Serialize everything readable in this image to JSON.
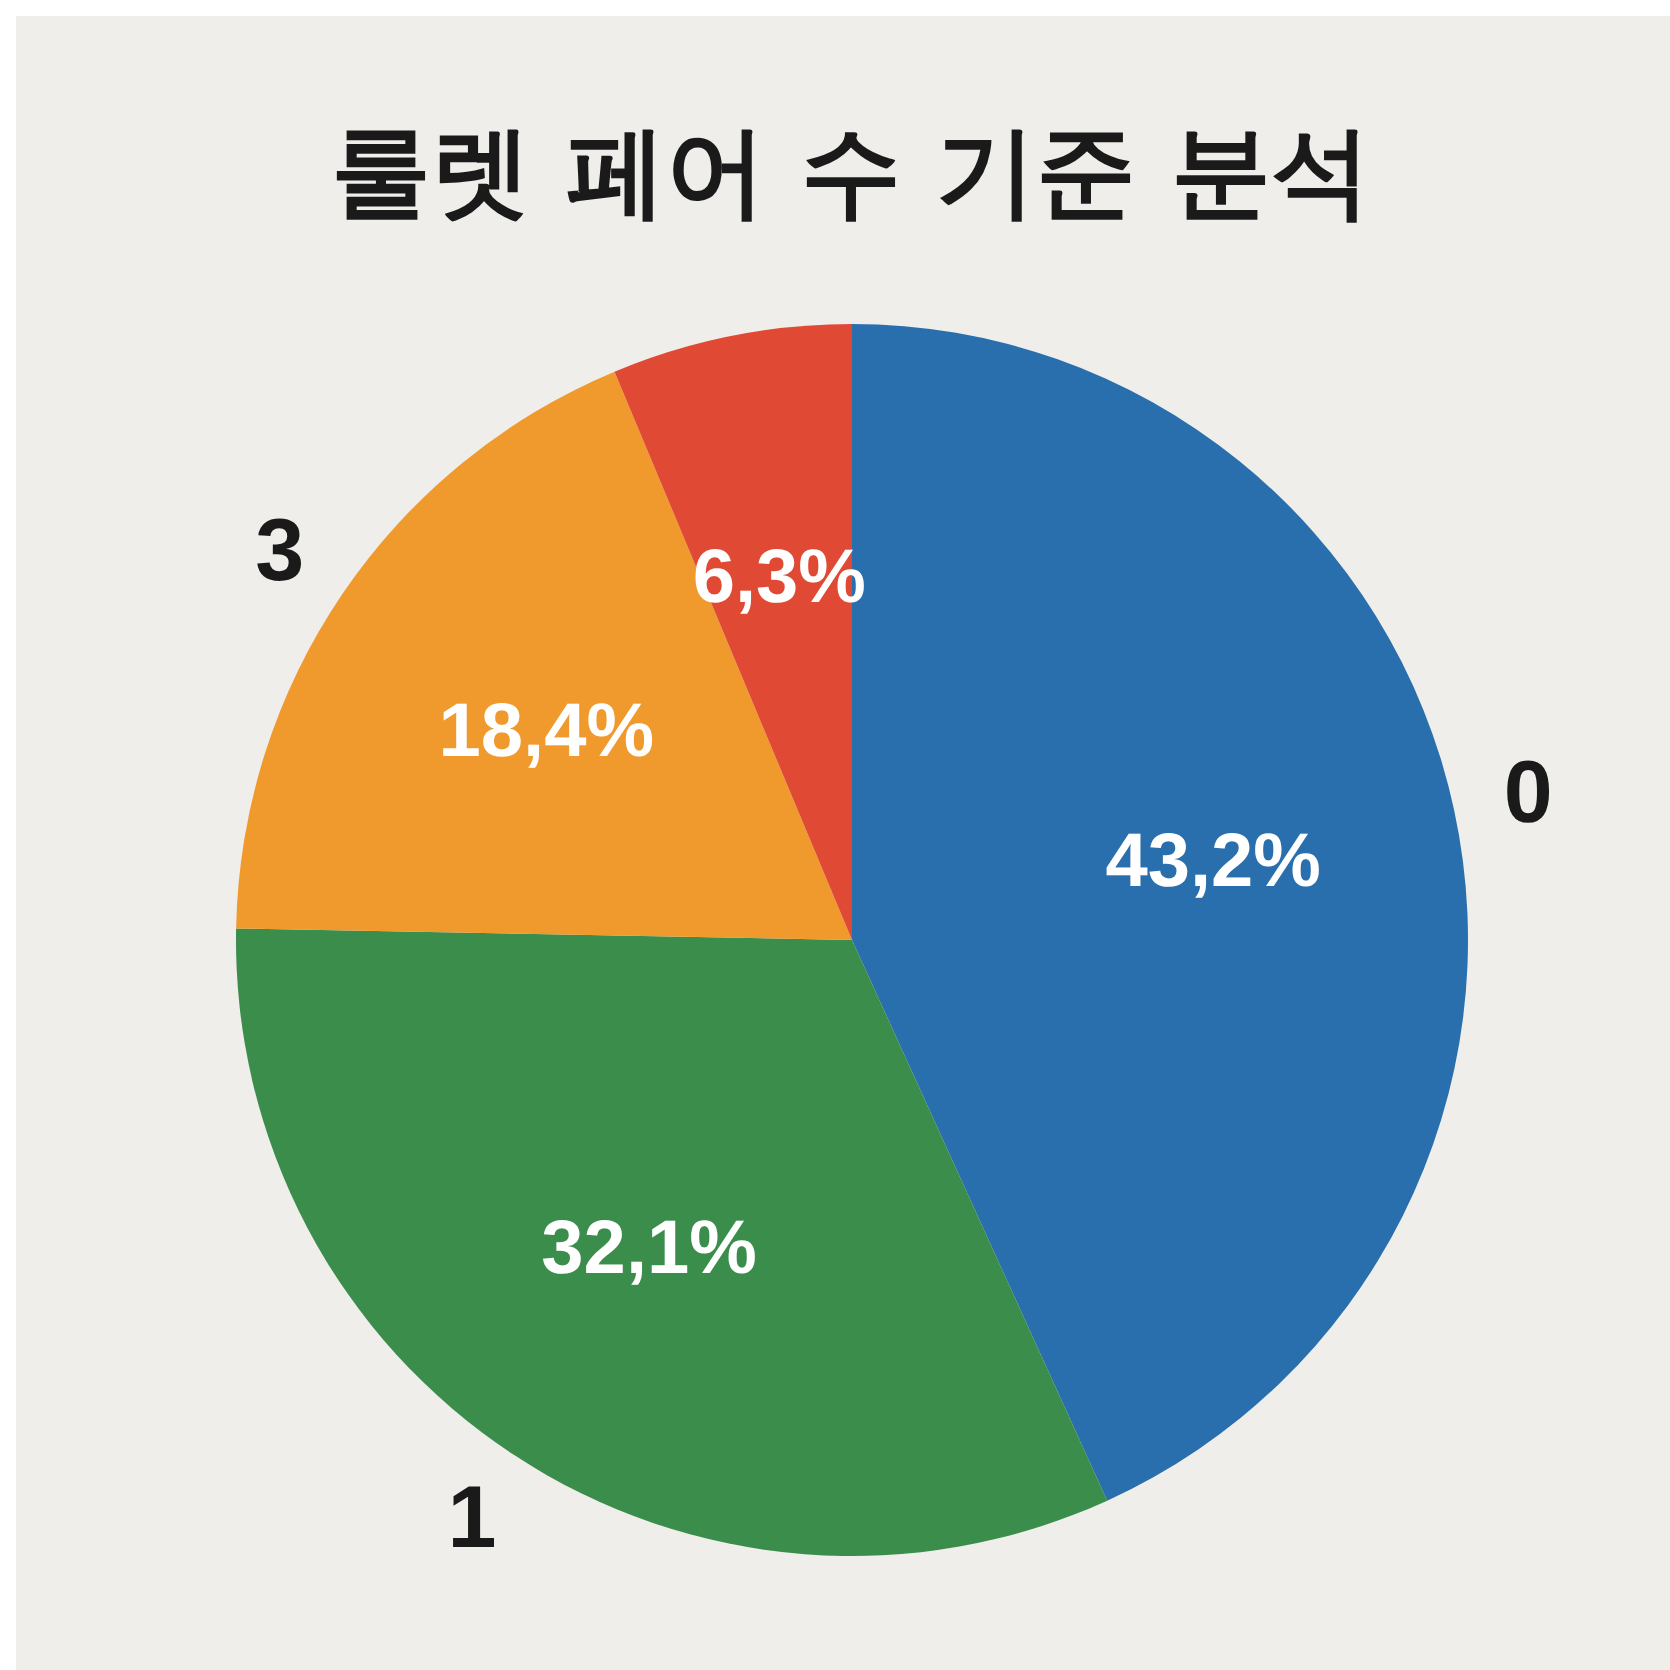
{
  "chart_data": {
    "type": "pie",
    "title": "룰렛 페어 수 기준 분석",
    "categories": [
      "0",
      "1",
      "3",
      null
    ],
    "values": [
      43.2,
      32.1,
      18.4,
      6.3
    ],
    "value_labels": [
      "43,2%",
      "32,1%",
      "18,4%",
      "6,3%"
    ],
    "colors": [
      "#2a6fad",
      "#3a8d4a",
      "#f09a2e",
      "#e04a35"
    ]
  }
}
